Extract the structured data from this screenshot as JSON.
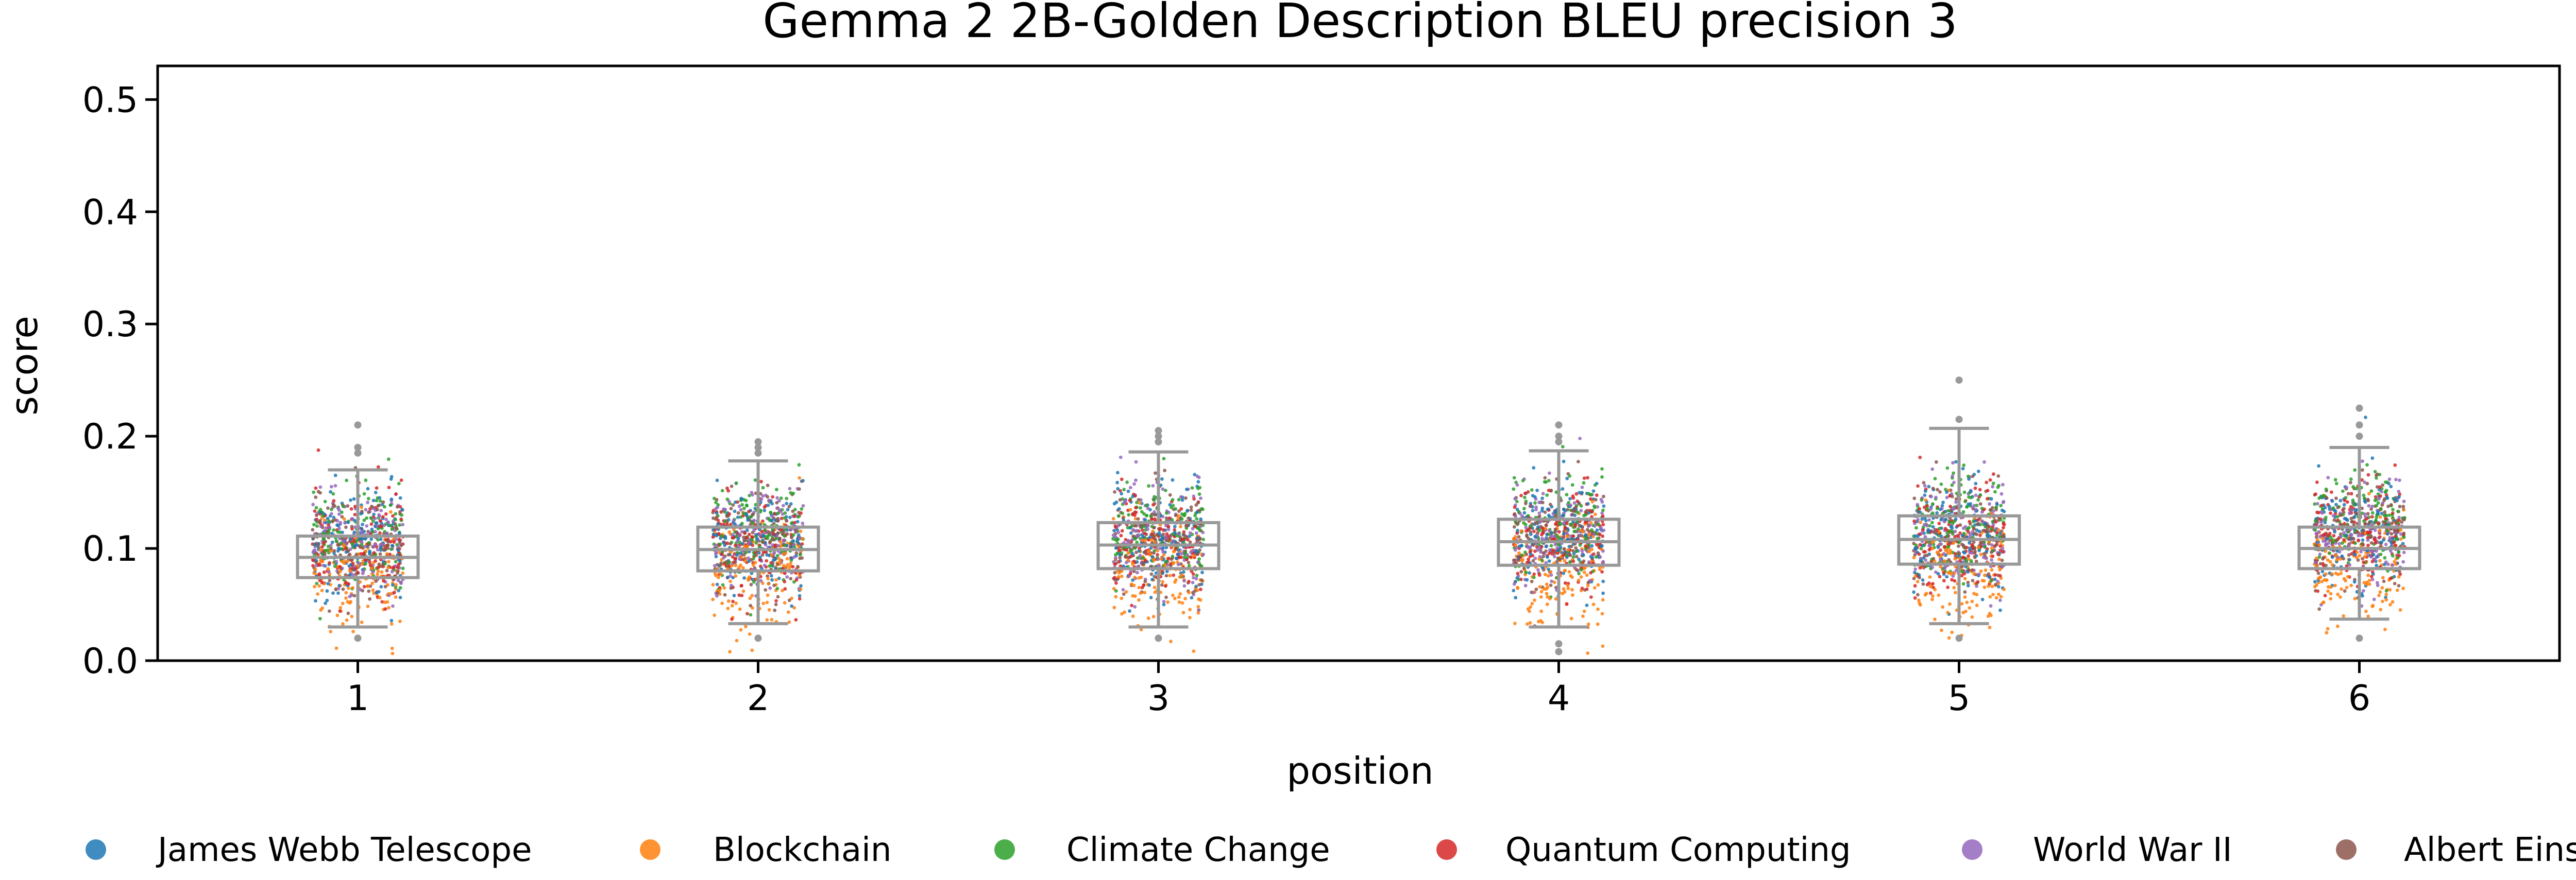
{
  "chart_data": {
    "type": "box-strip",
    "title": "Gemma 2 2B-Golden Description BLEU precision 3",
    "xlabel": "position",
    "ylabel": "score",
    "ylim": [
      0.0,
      0.53
    ],
    "yticks": [
      0.0,
      0.1,
      0.2,
      0.3,
      0.4,
      0.5
    ],
    "yticklabels": [
      "0.0",
      "0.1",
      "0.2",
      "0.3",
      "0.4",
      "0.5"
    ],
    "categories": [
      "1",
      "2",
      "3",
      "4",
      "5",
      "6"
    ],
    "grid": false,
    "legend_position": "bottom",
    "box_color": "#999999",
    "boxes": [
      {
        "position": "1",
        "whisker_low": 0.03,
        "q1": 0.074,
        "median": 0.092,
        "q3": 0.111,
        "whisker_high": 0.17,
        "outliers": [
          0.21,
          0.19,
          0.185,
          0.02
        ]
      },
      {
        "position": "2",
        "whisker_low": 0.033,
        "q1": 0.08,
        "median": 0.099,
        "q3": 0.119,
        "whisker_high": 0.178,
        "outliers": [
          0.195,
          0.19,
          0.185,
          0.02
        ]
      },
      {
        "position": "3",
        "whisker_low": 0.03,
        "q1": 0.082,
        "median": 0.103,
        "q3": 0.123,
        "whisker_high": 0.186,
        "outliers": [
          0.205,
          0.2,
          0.195,
          0.02
        ]
      },
      {
        "position": "4",
        "whisker_low": 0.03,
        "q1": 0.085,
        "median": 0.106,
        "q3": 0.126,
        "whisker_high": 0.187,
        "outliers": [
          0.21,
          0.2,
          0.195,
          0.015,
          0.008
        ]
      },
      {
        "position": "5",
        "whisker_low": 0.033,
        "q1": 0.086,
        "median": 0.108,
        "q3": 0.129,
        "whisker_high": 0.207,
        "outliers": [
          0.25,
          0.215,
          0.02
        ]
      },
      {
        "position": "6",
        "whisker_low": 0.037,
        "q1": 0.082,
        "median": 0.1,
        "q3": 0.119,
        "whisker_high": 0.19,
        "outliers": [
          0.225,
          0.21,
          0.2,
          0.02
        ]
      }
    ],
    "series": [
      {
        "name": "James Webb Telescope",
        "color": "#1f77b4",
        "mean": 0.104,
        "spread": 0.024
      },
      {
        "name": "Blockchain",
        "color": "#ff7f0e",
        "mean": 0.074,
        "spread": 0.026
      },
      {
        "name": "Climate Change",
        "color": "#2ca02c",
        "mean": 0.112,
        "spread": 0.022
      },
      {
        "name": "Quantum Computing",
        "color": "#d62728",
        "mean": 0.1,
        "spread": 0.023
      },
      {
        "name": "World War II",
        "color": "#9467bd",
        "mean": 0.106,
        "spread": 0.024
      },
      {
        "name": "Albert Einstein",
        "color": "#8c564b",
        "mean": 0.103,
        "spread": 0.023
      }
    ]
  }
}
